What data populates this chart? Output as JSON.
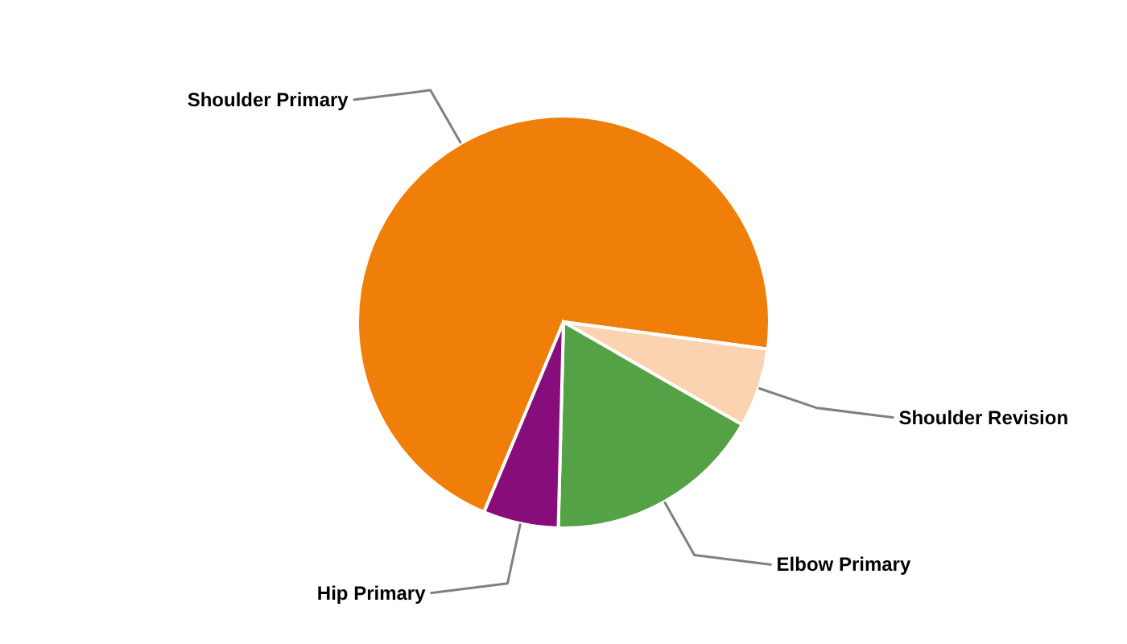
{
  "chart_data": {
    "type": "pie",
    "categories": [
      "Shoulder Primary",
      "Shoulder Revision",
      "Elbow Primary",
      "Hip Primary"
    ],
    "values": [
      70.8,
      6.2,
      17.1,
      5.9
    ],
    "colors": [
      "#f07f09",
      "#fcd3b0",
      "#54a245",
      "#870e7a"
    ]
  }
}
